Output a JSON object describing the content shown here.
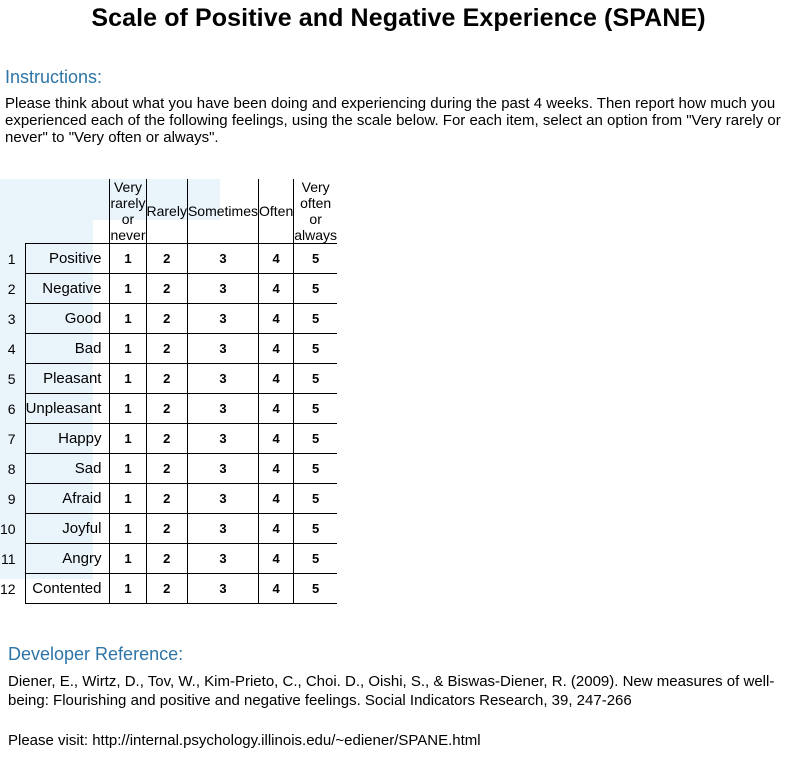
{
  "title": "Scale of Positive and Negative Experience (SPANE)",
  "instructions": {
    "heading": "Instructions:",
    "text": "Please think about what you have been doing and experiencing during the past 4 weeks. Then report how much you experienced each of the following feelings, using the scale below. For each item, select an option from \"Very rarely or never\" to \"Very often or always\"."
  },
  "scale": {
    "options": [
      {
        "label": "Very rarely or never",
        "value": "1"
      },
      {
        "label": "Rarely",
        "value": "2"
      },
      {
        "label": "Sometimes",
        "value": "3"
      },
      {
        "label": "Often",
        "value": "4"
      },
      {
        "label": "Very often or always",
        "value": "5"
      }
    ],
    "items": [
      {
        "num": "1",
        "label": "Positive"
      },
      {
        "num": "2",
        "label": "Negative"
      },
      {
        "num": "3",
        "label": "Good"
      },
      {
        "num": "4",
        "label": "Bad"
      },
      {
        "num": "5",
        "label": "Pleasant"
      },
      {
        "num": "6",
        "label": "Unpleasant"
      },
      {
        "num": "7",
        "label": "Happy"
      },
      {
        "num": "8",
        "label": "Sad"
      },
      {
        "num": "9",
        "label": "Afraid"
      },
      {
        "num": "10",
        "label": "Joyful"
      },
      {
        "num": "11",
        "label": "Angry"
      },
      {
        "num": "12",
        "label": "Contented"
      }
    ]
  },
  "reference": {
    "heading": "Developer Reference:",
    "citation": "Diener, E., Wirtz, D., Tov, W., Kim-Prieto, C., Choi. D., Oishi, S., & Biswas-Diener, R. (2009). New measures of well-being: Flourishing and positive and negative feelings. Social Indicators Research, 39, 247-266",
    "visit": "Please visit: http://internal.psychology.illinois.edu/~ediener/SPANE.html"
  },
  "colors": {
    "heading": "#2e74a6",
    "panel_bg": "#eaf4fb"
  }
}
